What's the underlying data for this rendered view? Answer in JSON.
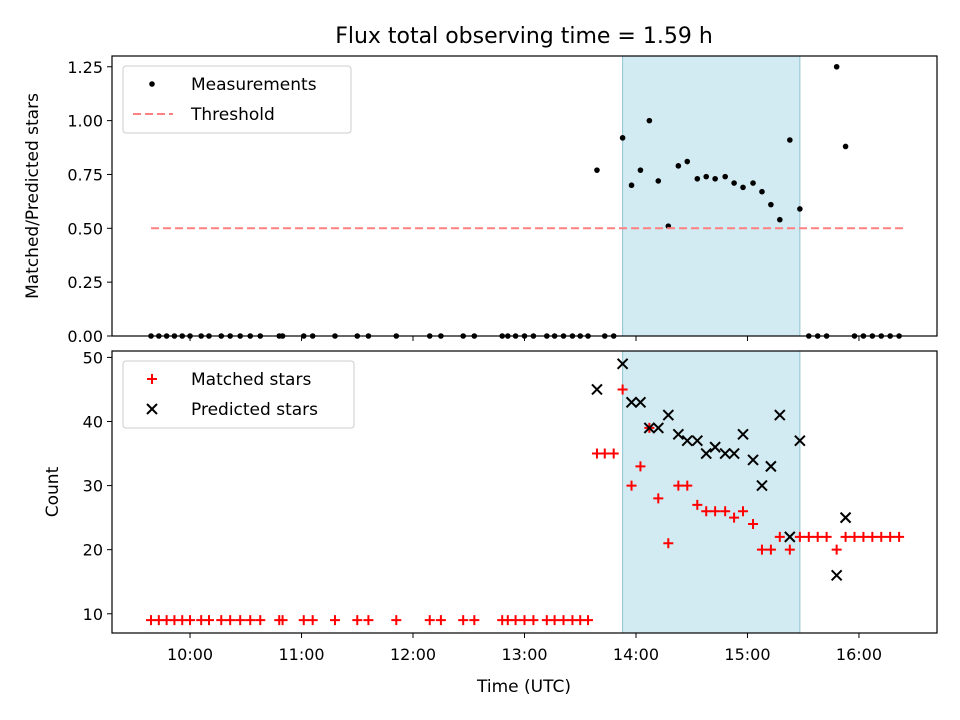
{
  "chart_data": {
    "title": "Flux total observing time = 1.59 h",
    "xlabel": "Time (UTC)",
    "x_unit": "UTC hour of day",
    "xlim": [
      9.3,
      16.7
    ],
    "xticks": [
      {
        "value": 10,
        "label": "10:00"
      },
      {
        "value": 11,
        "label": "11:00"
      },
      {
        "value": 12,
        "label": "12:00"
      },
      {
        "value": 13,
        "label": "13:00"
      },
      {
        "value": 14,
        "label": "14:00"
      },
      {
        "value": 15,
        "label": "15:00"
      },
      {
        "value": 16,
        "label": "16:00"
      }
    ],
    "highlight_span": [
      13.88,
      15.47
    ],
    "highlight_color": "#add8e6",
    "panels": [
      {
        "type": "scatter",
        "ylabel": "Matched/Predicted stars",
        "ylim": [
          0,
          1.3
        ],
        "yticks": [
          {
            "value": 0,
            "label": "0.00"
          },
          {
            "value": 0.25,
            "label": "0.25"
          },
          {
            "value": 0.5,
            "label": "0.50"
          },
          {
            "value": 0.75,
            "label": "0.75"
          },
          {
            "value": 1.0,
            "label": "1.00"
          },
          {
            "value": 1.25,
            "label": "1.25"
          }
        ],
        "legend_position": "top-left",
        "series": [
          {
            "name": "Measurements",
            "marker": "dot",
            "color": "#000000",
            "x": [
              9.65,
              9.72,
              9.79,
              9.86,
              9.93,
              10.0,
              10.1,
              10.17,
              10.28,
              10.36,
              10.45,
              10.54,
              10.63,
              10.8,
              10.83,
              11.02,
              11.1,
              11.3,
              11.5,
              11.6,
              11.85,
              12.15,
              12.25,
              12.45,
              12.55,
              12.8,
              12.85,
              12.92,
              13.0,
              13.08,
              13.2,
              13.27,
              13.35,
              13.43,
              13.5,
              13.57,
              13.65,
              13.72,
              13.8,
              13.88,
              13.96,
              14.04,
              14.12,
              14.2,
              14.29,
              14.38,
              14.46,
              14.55,
              14.63,
              14.71,
              14.8,
              14.88,
              14.96,
              15.05,
              15.13,
              15.21,
              15.29,
              15.38,
              15.47,
              15.55,
              15.63,
              15.71,
              15.8,
              15.88,
              15.96,
              16.04,
              16.12,
              16.2,
              16.28,
              16.36
            ],
            "y": [
              0,
              0,
              0,
              0,
              0,
              0,
              0,
              0,
              0,
              0,
              0,
              0,
              0,
              0,
              0,
              0,
              0,
              0,
              0,
              0,
              0,
              0,
              0,
              0,
              0,
              0,
              0,
              0,
              0,
              0,
              0,
              0,
              0,
              0,
              0,
              0,
              0.77,
              0,
              0,
              0.92,
              0.7,
              0.77,
              1.0,
              0.72,
              0.51,
              0.79,
              0.81,
              0.73,
              0.74,
              0.73,
              0.74,
              0.71,
              0.69,
              0.71,
              0.67,
              0.61,
              0.54,
              0.91,
              0.59,
              0,
              0,
              0,
              1.25,
              0.88,
              0,
              0,
              0,
              0,
              0,
              0
            ]
          },
          {
            "name": "Threshold",
            "marker": "dashed-line",
            "color": "#ff8080",
            "x": [
              9.65,
              16.4
            ],
            "y": [
              0.5,
              0.5
            ]
          }
        ]
      },
      {
        "type": "scatter",
        "ylabel": "Count",
        "ylim": [
          7,
          51
        ],
        "yticks": [
          {
            "value": 10,
            "label": "10"
          },
          {
            "value": 20,
            "label": "20"
          },
          {
            "value": 30,
            "label": "30"
          },
          {
            "value": 40,
            "label": "40"
          },
          {
            "value": 50,
            "label": "50"
          }
        ],
        "legend_position": "top-left",
        "series": [
          {
            "name": "Matched stars",
            "marker": "plus",
            "color": "#ff0000",
            "x": [
              9.65,
              9.72,
              9.79,
              9.86,
              9.93,
              10.0,
              10.1,
              10.17,
              10.28,
              10.36,
              10.45,
              10.54,
              10.63,
              10.8,
              10.83,
              11.02,
              11.1,
              11.3,
              11.5,
              11.6,
              11.85,
              12.15,
              12.25,
              12.45,
              12.55,
              12.8,
              12.85,
              12.92,
              13.0,
              13.08,
              13.2,
              13.27,
              13.35,
              13.43,
              13.5,
              13.57,
              13.65,
              13.72,
              13.8,
              13.88,
              13.96,
              14.04,
              14.12,
              14.2,
              14.29,
              14.38,
              14.46,
              14.55,
              14.63,
              14.71,
              14.8,
              14.88,
              14.96,
              15.05,
              15.13,
              15.21,
              15.29,
              15.38,
              15.47,
              15.55,
              15.63,
              15.71,
              15.8,
              15.88,
              15.96,
              16.04,
              16.12,
              16.2,
              16.28,
              16.36
            ],
            "y": [
              9,
              9,
              9,
              9,
              9,
              9,
              9,
              9,
              9,
              9,
              9,
              9,
              9,
              9,
              9,
              9,
              9,
              9,
              9,
              9,
              9,
              9,
              9,
              9,
              9,
              9,
              9,
              9,
              9,
              9,
              9,
              9,
              9,
              9,
              9,
              9,
              35,
              35,
              35,
              45,
              30,
              33,
              39,
              28,
              21,
              30,
              30,
              27,
              26,
              26,
              26,
              25,
              26,
              24,
              20,
              20,
              22,
              20,
              22,
              22,
              22,
              22,
              20,
              22,
              22,
              22,
              22,
              22,
              22,
              22
            ]
          },
          {
            "name": "Predicted stars",
            "marker": "x",
            "color": "#000000",
            "x": [
              13.65,
              13.88,
              13.96,
              14.04,
              14.12,
              14.2,
              14.29,
              14.38,
              14.46,
              14.55,
              14.63,
              14.71,
              14.8,
              14.88,
              14.96,
              15.05,
              15.13,
              15.21,
              15.29,
              15.38,
              15.47,
              15.8,
              15.88
            ],
            "y": [
              45,
              49,
              43,
              43,
              39,
              39,
              41,
              38,
              37,
              37,
              35,
              36,
              35,
              35,
              38,
              34,
              30,
              33,
              41,
              22,
              37,
              16,
              25
            ]
          }
        ]
      }
    ]
  }
}
